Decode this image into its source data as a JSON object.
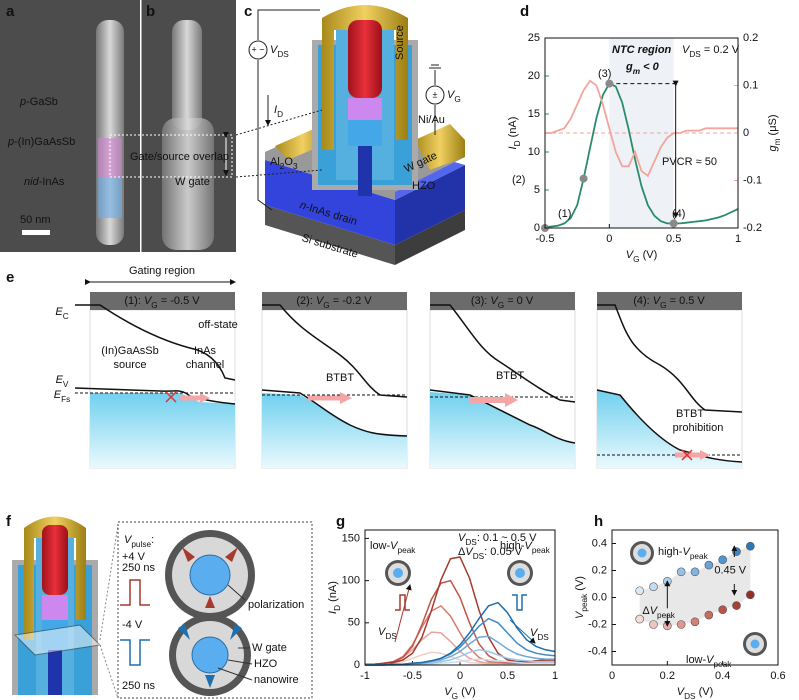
{
  "panel_labels": [
    "a",
    "b",
    "c",
    "d",
    "e",
    "f",
    "g",
    "h"
  ],
  "sem": [
    [
      {
        "i": "p"
      },
      {
        "t": "-GaSb"
      }
    ],
    [
      {
        "i": "p"
      },
      {
        "t": "-(In)GaAsSb"
      }
    ],
    [
      {
        "i": "nid"
      },
      {
        "t": "-InAs"
      }
    ],
    "Gate/source overlap",
    "W gate",
    "50 nm"
  ],
  "device": [
    [
      {
        "i": "V"
      },
      {
        "s": "DS"
      }
    ],
    [
      {
        "i": "I"
      },
      {
        "s": "D"
      }
    ],
    [
      {
        "i": "V"
      },
      {
        "s": "G"
      }
    ],
    "Source",
    "Ni/Au",
    [
      {
        "t": "Al"
      },
      {
        "s": "2"
      },
      {
        "t": "O"
      },
      {
        "s": "3"
      }
    ],
    "W gate",
    "HZO",
    [
      {
        "i": "n"
      },
      {
        "t": "-InAs drain"
      }
    ],
    "Si substrate"
  ],
  "bands": {
    "header": "Gating region",
    "titles": [
      [
        {
          "t": "(1): "
        },
        {
          "i": "V"
        },
        {
          "s": "G"
        },
        {
          "t": " = -0.5 V"
        }
      ],
      [
        {
          "t": "(2): "
        },
        {
          "i": "V"
        },
        {
          "s": "G"
        },
        {
          "t": " = -0.2 V"
        }
      ],
      [
        {
          "t": "(3): "
        },
        {
          "i": "V"
        },
        {
          "s": "G"
        },
        {
          "t": " = 0 V"
        }
      ],
      [
        {
          "t": "(4): "
        },
        {
          "i": "V"
        },
        {
          "s": "G"
        },
        {
          "t": " = 0.5 V"
        }
      ]
    ],
    "labels": [
      [
        {
          "i": "E"
        },
        {
          "s": "C"
        }
      ],
      [
        {
          "i": "E"
        },
        {
          "s": "V"
        }
      ],
      [
        {
          "i": "E"
        },
        {
          "s": "Fs"
        }
      ],
      "off-state",
      "(In)GaAsSb",
      "source",
      "InAs",
      "channel",
      "BTBT",
      "BTBT",
      "BTBT",
      "prohibition"
    ]
  },
  "pulse": [
    [
      {
        "i": "V"
      },
      {
        "s": "pulse"
      },
      {
        "t": ":"
      }
    ],
    "+4 V",
    "250 ns",
    "-4 V",
    "250 ns",
    "polarization",
    "W gate",
    "HZO",
    "nanowire"
  ],
  "chart_data": [
    {
      "type": "line",
      "title": "NTC region",
      "annotations": [
        [
          {
            "i": "g"
          },
          {
            "si": "m"
          },
          {
            "i": " < 0"
          }
        ],
        [
          {
            "i": "V"
          },
          {
            "s": "DS"
          },
          {
            "t": " = 0.2 V"
          }
        ],
        "PVCR ≈ 50",
        "(1)",
        "(2)",
        "(3)",
        "(4)"
      ],
      "xlabel": [
        {
          "i": "V"
        },
        {
          "s": "G"
        },
        {
          "t": " (V)"
        }
      ],
      "ylabel": [
        {
          "i": "I"
        },
        {
          "s": "D"
        },
        {
          "t": " (nA)"
        }
      ],
      "y2label": [
        {
          "i": "g"
        },
        {
          "s": "m"
        },
        {
          "t": " (μS)"
        }
      ],
      "x": [
        -0.5,
        -0.45,
        -0.4,
        -0.35,
        -0.3,
        -0.25,
        -0.2,
        -0.15,
        -0.1,
        -0.05,
        0,
        0.05,
        0.1,
        0.15,
        0.2,
        0.25,
        0.3,
        0.35,
        0.4,
        0.45,
        0.5,
        0.55,
        0.6,
        0.65,
        0.7,
        0.75,
        0.8,
        0.85,
        0.9,
        0.95,
        1
      ],
      "series": [
        {
          "color": "#2a8c6a",
          "values": [
            0.1,
            0.2,
            0.3,
            0.6,
            1.3,
            3,
            6.5,
            10.5,
            14.5,
            17.5,
            19,
            18.6,
            16.5,
            13,
            9,
            5.5,
            3,
            1.6,
            0.9,
            0.6,
            0.6,
            0.6,
            0.7,
            0.8,
            0.9,
            1,
            1.2,
            1.4,
            1.7,
            2.1,
            2.5
          ]
        },
        {
          "color": "#f2a59c",
          "axis": "y2",
          "values": [
            0,
            0,
            0.005,
            0.01,
            0.03,
            0.06,
            0.09,
            0.11,
            0.1,
            0.06,
            0.01,
            -0.04,
            -0.07,
            -0.07,
            -0.04,
            -0.08,
            -0.09,
            -0.06,
            -0.03,
            -0.01,
            0,
            0,
            0.005,
            0.005,
            0.005,
            0.01,
            0.01,
            0.01,
            0.01,
            0.01,
            0.01
          ]
        }
      ],
      "markers": {
        "x": [
          -0.5,
          -0.2,
          0,
          0.5
        ],
        "values": [
          0,
          6.5,
          19,
          0.6
        ]
      },
      "shade": [
        0,
        0.5
      ],
      "xlim": [
        -0.5,
        1
      ],
      "xticks": [
        -0.5,
        0,
        0.5,
        1
      ],
      "ylim": [
        0,
        25
      ],
      "yticks": [
        0,
        5,
        10,
        15,
        20,
        25
      ],
      "y2lim": [
        -0.2,
        0.2
      ],
      "y2ticks": [
        -0.2,
        -0.1,
        0,
        0.1,
        0.2
      ]
    },
    {
      "type": "line",
      "annotations": [
        [
          {
            "i": "V"
          },
          {
            "s": "DS"
          },
          {
            "t": ": 0.1 ~ 0.5 V"
          }
        ],
        [
          {
            "t": "Δ"
          },
          {
            "i": "V"
          },
          {
            "s": "DS"
          },
          {
            "t": ": 0.05 V"
          }
        ],
        [
          {
            "t": "low-"
          },
          {
            "i": "V"
          },
          {
            "s": "peak"
          }
        ],
        [
          {
            "t": "high-"
          },
          {
            "i": "V"
          },
          {
            "s": "peak"
          }
        ],
        [
          {
            "i": "V"
          },
          {
            "s": "DS"
          }
        ],
        [
          {
            "i": "V"
          },
          {
            "s": "DS"
          }
        ]
      ],
      "xlabel": [
        {
          "i": "V"
        },
        {
          "s": "G"
        },
        {
          "t": " (V)"
        }
      ],
      "ylabel": [
        {
          "i": "I"
        },
        {
          "s": "D"
        },
        {
          "t": " (nA)"
        }
      ],
      "x": [
        -1,
        -0.9,
        -0.8,
        -0.7,
        -0.6,
        -0.5,
        -0.4,
        -0.3,
        -0.2,
        -0.1,
        0,
        0.1,
        0.2,
        0.3,
        0.4,
        0.5,
        0.6,
        0.7,
        0.8,
        0.9,
        1
      ],
      "series": [
        {
          "color": "#f3cfc9",
          "values": [
            0,
            1,
            1,
            2,
            4,
            8,
            12,
            15,
            14,
            10,
            6,
            3,
            2,
            1,
            1,
            1,
            1,
            1,
            1,
            1,
            1
          ]
        },
        {
          "color": "#e7a398",
          "values": [
            0,
            1,
            2,
            4,
            9,
            18,
            30,
            39,
            38,
            28,
            16,
            8,
            4,
            2,
            2,
            2,
            2,
            2,
            2,
            2,
            3
          ]
        },
        {
          "color": "#d77a6c",
          "values": [
            1,
            1,
            2,
            4,
            10,
            24,
            45,
            64,
            70,
            58,
            38,
            20,
            9,
            4,
            3,
            2,
            2,
            3,
            3,
            3,
            4
          ]
        },
        {
          "color": "#c25548",
          "values": [
            1,
            1,
            2,
            4,
            9,
            22,
            48,
            78,
            97,
            100,
            80,
            50,
            25,
            11,
            5,
            3,
            3,
            3,
            4,
            5,
            5
          ]
        },
        {
          "color": "#a63a2f",
          "values": [
            1,
            1,
            2,
            3,
            6,
            14,
            33,
            65,
            101,
            126,
            128,
            103,
            65,
            33,
            14,
            6,
            4,
            4,
            5,
            6,
            7
          ]
        },
        {
          "color": "#c8e0f2",
          "values": [
            0,
            0,
            0,
            0,
            0,
            0,
            1,
            1,
            2,
            3,
            4,
            6,
            7,
            6,
            5,
            4,
            3,
            2,
            2,
            2,
            2
          ]
        },
        {
          "color": "#9cc6e6",
          "values": [
            0,
            0,
            0,
            0,
            0,
            1,
            1,
            2,
            4,
            6,
            10,
            15,
            18,
            16,
            12,
            8,
            6,
            5,
            4,
            4,
            4
          ]
        },
        {
          "color": "#6fa9d7",
          "values": [
            0,
            0,
            0,
            0,
            1,
            1,
            2,
            4,
            6,
            10,
            16,
            25,
            33,
            34,
            27,
            19,
            13,
            10,
            8,
            7,
            7
          ]
        },
        {
          "color": "#3f8bc6",
          "values": [
            0,
            0,
            0,
            1,
            1,
            2,
            3,
            5,
            8,
            13,
            21,
            33,
            46,
            55,
            50,
            38,
            26,
            18,
            14,
            12,
            11
          ]
        },
        {
          "color": "#1f6fae",
          "values": [
            0,
            0,
            0,
            1,
            1,
            2,
            3,
            5,
            8,
            14,
            24,
            38,
            55,
            70,
            74,
            62,
            44,
            30,
            22,
            18,
            16
          ]
        }
      ],
      "xlim": [
        -1,
        1
      ],
      "xticks": [
        -1,
        -0.5,
        0,
        0.5,
        1
      ],
      "ylim": [
        0,
        160
      ],
      "yticks": [
        0,
        50,
        100,
        150
      ]
    },
    {
      "type": "scatter",
      "annotations": [
        "0.45 V",
        [
          {
            "t": "Δ"
          },
          {
            "i": "V"
          },
          {
            "s": "peak"
          }
        ],
        [
          {
            "t": "high-"
          },
          {
            "i": "V"
          },
          {
            "s": "peak"
          }
        ],
        [
          {
            "t": "low-"
          },
          {
            "i": "V"
          },
          {
            "s": "peak"
          }
        ]
      ],
      "xlabel": [
        {
          "i": "V"
        },
        {
          "s": "DS"
        },
        {
          "t": " (V)"
        }
      ],
      "ylabel": [
        {
          "i": "V"
        },
        {
          "s": "peak"
        },
        {
          "t": " (V)"
        }
      ],
      "x": [
        0.1,
        0.15,
        0.2,
        0.25,
        0.3,
        0.35,
        0.4,
        0.45,
        0.5
      ],
      "series": [
        {
          "colors": [
            "#dbe9f6",
            "#c4dcf0",
            "#aecfea",
            "#98c1e4",
            "#82b3dd",
            "#6aa4d6",
            "#5196cf",
            "#3a87c6",
            "#2a78ba"
          ],
          "values": [
            0.05,
            0.08,
            0.12,
            0.19,
            0.19,
            0.24,
            0.28,
            0.34,
            0.38
          ]
        },
        {
          "colors": [
            "#f6dcd8",
            "#f0c5be",
            "#e9aea5",
            "#e0978c",
            "#d68074",
            "#ca6a5d",
            "#bb5447",
            "#a94034",
            "#962f24"
          ],
          "values": [
            -0.16,
            -0.2,
            -0.21,
            -0.2,
            -0.18,
            -0.13,
            -0.09,
            -0.06,
            0.02
          ]
        }
      ],
      "xlim": [
        0,
        0.6
      ],
      "xticks": [
        0,
        0.2,
        0.4,
        0.6
      ],
      "ylim": [
        -0.5,
        0.5
      ],
      "yticks": [
        -0.4,
        -0.2,
        {
          "value": 0,
          "label": "0.0"
        },
        0.2,
        0.4
      ]
    }
  ]
}
